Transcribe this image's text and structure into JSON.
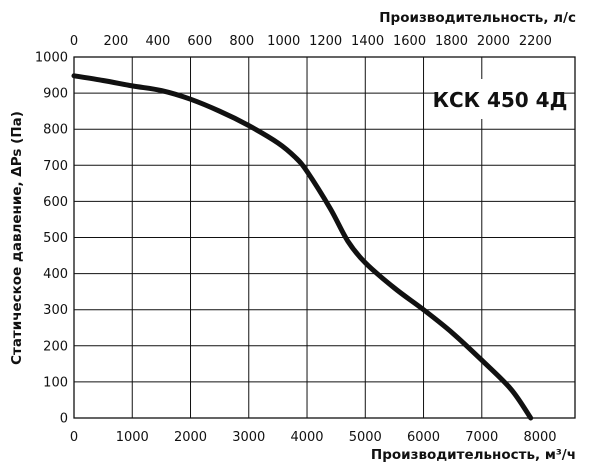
{
  "chart_data": {
    "type": "line",
    "title": "",
    "annotation": "КСК 450 4Д",
    "xlabel": "Производительность, м³/ч",
    "ylabel": "Статическое давление, ΔPs (Па)",
    "x2label": "Производительность, л/с",
    "xlim": [
      0,
      8600
    ],
    "ylim": [
      0,
      1000
    ],
    "x2lim": [
      0,
      2388.9
    ],
    "x_ticks": [
      0,
      1000,
      2000,
      3000,
      4000,
      5000,
      6000,
      7000,
      8000
    ],
    "y_ticks": [
      0,
      100,
      200,
      300,
      400,
      500,
      600,
      700,
      800,
      900,
      1000
    ],
    "x2_ticks": [
      0,
      200,
      400,
      600,
      800,
      1000,
      1200,
      1400,
      1600,
      1800,
      2000,
      2200
    ],
    "x_gridlines": [
      0,
      1000,
      2000,
      3000,
      4000,
      5000,
      6000,
      7000
    ],
    "y_gridlines": [
      100,
      200,
      300,
      400,
      500,
      600,
      700,
      800,
      900
    ],
    "grid": true,
    "series": [
      {
        "name": "",
        "x": [
          0,
          500,
          1000,
          1500,
          2000,
          2500,
          3000,
          3500,
          3800,
          4000,
          4400,
          4700,
          5000,
          5500,
          6000,
          6500,
          7000,
          7500,
          7840
        ],
        "y": [
          948,
          935,
          920,
          907,
          883,
          850,
          810,
          762,
          722,
          683,
          580,
          490,
          430,
          360,
          300,
          235,
          160,
          80,
          0
        ]
      }
    ]
  }
}
